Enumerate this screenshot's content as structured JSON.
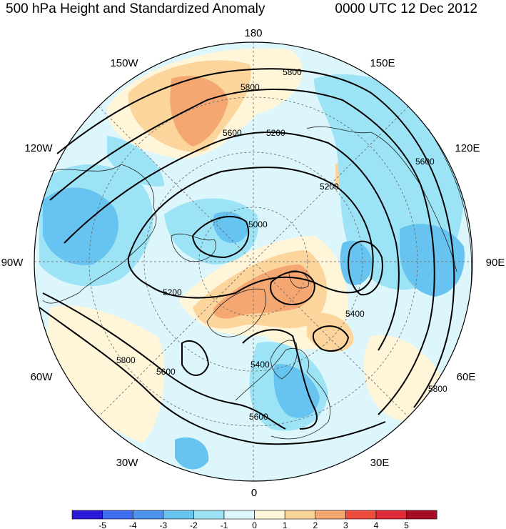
{
  "title": {
    "left": "500 hPa Height and Standardized Anomaly",
    "right": "0000 UTC 12 Dec 2012"
  },
  "longitude_labels": [
    {
      "text": "180",
      "name": "lon-label-180"
    },
    {
      "text": "150E",
      "name": "lon-label-150e"
    },
    {
      "text": "120E",
      "name": "lon-label-120e"
    },
    {
      "text": "90E",
      "name": "lon-label-90e"
    },
    {
      "text": "60E",
      "name": "lon-label-60e"
    },
    {
      "text": "30E",
      "name": "lon-label-30e"
    },
    {
      "text": "0",
      "name": "lon-label-0"
    },
    {
      "text": "30W",
      "name": "lon-label-30w"
    },
    {
      "text": "60W",
      "name": "lon-label-60w"
    },
    {
      "text": "90W",
      "name": "lon-label-90w"
    },
    {
      "text": "120W",
      "name": "lon-label-120w"
    },
    {
      "text": "150W",
      "name": "lon-label-150w"
    }
  ],
  "contour_labels": [
    "5800",
    "5800",
    "5600",
    "5200",
    "5200",
    "5000",
    "5200",
    "5400",
    "5400",
    "5600",
    "5800",
    "5600",
    "5800",
    "5600"
  ],
  "colorbar": {
    "colors": [
      "#2a1bd8",
      "#3f6df2",
      "#4c93f0",
      "#67c3f0",
      "#9ce3f5",
      "#dcf6fb",
      "#fff6d9",
      "#fbd59b",
      "#f5a772",
      "#ee4d3e",
      "#e02b38",
      "#a60c25"
    ],
    "labels": [
      "-5",
      "-4",
      "-3",
      "-2",
      "-1",
      "0",
      "1",
      "2",
      "3",
      "4",
      "5"
    ]
  },
  "colors": {
    "background_neutral": "#dcf6fb",
    "pos1": "#fff6d9",
    "pos2": "#fbd59b",
    "pos3": "#f5a772",
    "neg1": "#9ce3f5",
    "neg2": "#67c3f0"
  }
}
